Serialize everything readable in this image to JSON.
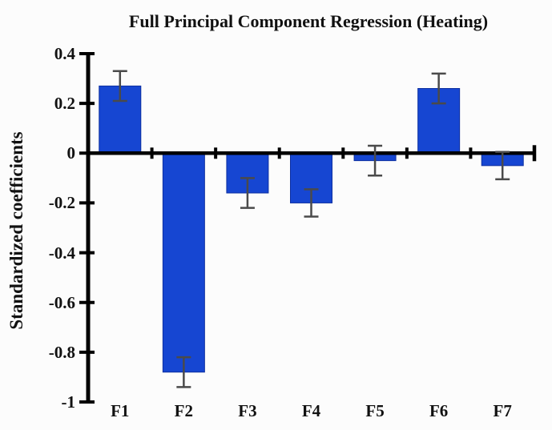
{
  "title": "Full Principal Component Regression (Heating)",
  "chart_data": {
    "type": "bar",
    "title": "Full Principal Component Regression (Heating)",
    "xlabel": "",
    "ylabel": "Standardized coefficients",
    "categories": [
      "F1",
      "F2",
      "F3",
      "F4",
      "F5",
      "F6",
      "F7"
    ],
    "values": [
      0.27,
      -0.88,
      -0.16,
      -0.2,
      -0.03,
      0.26,
      -0.05
    ],
    "error_bars": [
      0.06,
      0.06,
      0.06,
      0.055,
      0.06,
      0.06,
      0.055
    ],
    "ylim": [
      -1,
      0.4
    ],
    "yticks": [
      0.4,
      0.2,
      0,
      -0.2,
      -0.4,
      -0.6,
      -0.8,
      -1
    ],
    "ytick_labels": [
      "0.4",
      "0.2",
      "0",
      "-0.2",
      "-0.4",
      "-0.6",
      "-0.8",
      "-1"
    ],
    "grid": false,
    "legend_position": "none",
    "colors": {
      "bar_fill": "#1646d2",
      "bar_edge": "#0d2fa0",
      "axis": "#000000",
      "error_bar": "#4a4a4a",
      "text": "#111111",
      "background": "#fcfcfc"
    }
  }
}
